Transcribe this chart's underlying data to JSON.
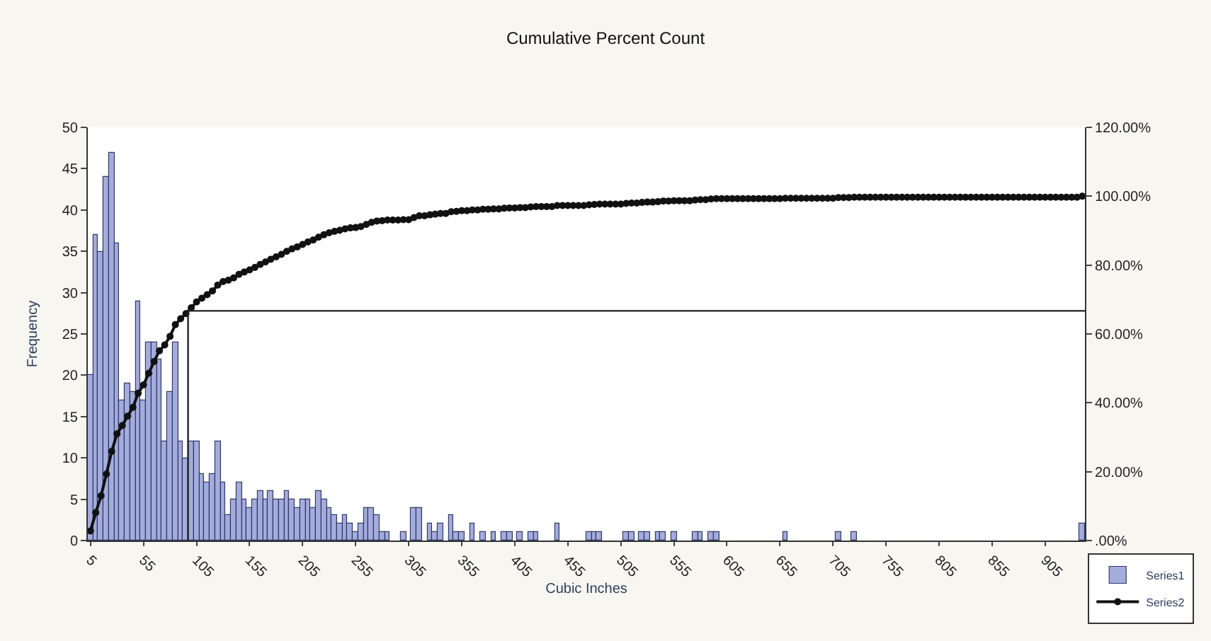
{
  "chart_data": {
    "type": "bar",
    "title": "Cumulative Percent Count",
    "xlabel": "Cubic Inches",
    "ylabel": "Frequency",
    "x": [
      5,
      10,
      15,
      20,
      25,
      30,
      35,
      40,
      45,
      50,
      55,
      60,
      65,
      70,
      75,
      80,
      85,
      90,
      95,
      100,
      105,
      110,
      115,
      120,
      125,
      130,
      135,
      140,
      145,
      150,
      155,
      160,
      165,
      170,
      175,
      180,
      185,
      190,
      195,
      200,
      205,
      210,
      215,
      220,
      225,
      230,
      235,
      240,
      245,
      250,
      255,
      260,
      265,
      270,
      275,
      280,
      285,
      290,
      295,
      300,
      305,
      310,
      315,
      320,
      325,
      330,
      335,
      340,
      345,
      350,
      355,
      360,
      365,
      370,
      375,
      380,
      385,
      390,
      395,
      400,
      405,
      410,
      415,
      420,
      425,
      430,
      435,
      440,
      445,
      450,
      455,
      460,
      465,
      470,
      475,
      480,
      485,
      490,
      495,
      500,
      505,
      510,
      515,
      520,
      525,
      530,
      535,
      540,
      545,
      550,
      555,
      560,
      565,
      570,
      575,
      580,
      585,
      590,
      595,
      600,
      605,
      610,
      615,
      620,
      625,
      630,
      635,
      640,
      645,
      650,
      655,
      660,
      665,
      670,
      675,
      680,
      685,
      690,
      695,
      700,
      705,
      710,
      715,
      720,
      725,
      730,
      735,
      740,
      745,
      750,
      755,
      760,
      765,
      770,
      775,
      780,
      785,
      790,
      795,
      800,
      805,
      810,
      815,
      820,
      825,
      830,
      835,
      840,
      845,
      850,
      855,
      860,
      865,
      870,
      875,
      880,
      885,
      890,
      895,
      900,
      905,
      910,
      915,
      920,
      925,
      930,
      935,
      940
    ],
    "series": [
      {
        "name": "Series1",
        "color": "#a3acdc",
        "values": [
          20,
          37,
          35,
          44,
          47,
          36,
          17,
          19,
          18,
          29,
          17,
          24,
          24,
          22,
          12,
          18,
          24,
          12,
          10,
          12,
          12,
          8,
          7,
          8,
          12,
          7,
          3,
          5,
          7,
          5,
          4,
          5,
          6,
          5,
          6,
          5,
          5,
          6,
          5,
          4,
          5,
          5,
          4,
          6,
          5,
          4,
          3,
          2,
          3,
          2,
          1,
          2,
          4,
          4,
          3,
          1,
          1,
          0,
          0,
          1,
          0,
          4,
          4,
          0,
          2,
          1,
          2,
          0,
          3,
          1,
          1,
          0,
          2,
          0,
          1,
          0,
          1,
          0,
          1,
          1,
          0,
          1,
          0,
          1,
          1,
          0,
          0,
          0,
          2,
          0,
          0,
          0,
          0,
          0,
          1,
          1,
          1,
          0,
          0,
          0,
          0,
          1,
          1,
          0,
          1,
          1,
          0,
          1,
          1,
          0,
          1,
          0,
          0,
          0,
          1,
          1,
          0,
          1,
          1,
          0,
          0,
          0,
          0,
          0,
          0,
          0,
          0,
          0,
          0,
          0,
          0,
          1,
          0,
          0,
          0,
          0,
          0,
          0,
          0,
          0,
          0,
          1,
          0,
          0,
          1,
          0,
          0,
          0,
          0,
          0,
          0,
          0,
          0,
          0,
          0,
          0,
          0,
          0,
          0,
          0,
          0,
          0,
          0,
          0,
          0,
          0,
          0,
          0,
          0,
          0,
          0,
          0,
          0,
          0,
          0,
          0,
          0,
          0,
          0,
          0,
          0,
          0,
          0,
          0,
          0,
          0,
          0,
          2
        ]
      },
      {
        "name": "Series2",
        "type": "line",
        "axis": "y2",
        "color": "#111111",
        "values": [
          2.8,
          8.1,
          13.0,
          19.3,
          25.9,
          31.0,
          33.4,
          36.1,
          38.7,
          42.8,
          45.2,
          48.6,
          52.0,
          55.1,
          56.8,
          59.3,
          62.7,
          64.4,
          65.9,
          67.6,
          69.3,
          70.4,
          71.4,
          72.5,
          74.2,
          75.2,
          75.6,
          76.3,
          77.3,
          78.0,
          78.6,
          79.3,
          80.2,
          80.9,
          81.7,
          82.4,
          83.1,
          84.0,
          84.7,
          85.3,
          86.0,
          86.7,
          87.3,
          88.1,
          88.8,
          89.4,
          89.8,
          90.1,
          90.5,
          90.8,
          90.9,
          91.2,
          91.8,
          92.4,
          92.8,
          92.9,
          93.1,
          93.1,
          93.1,
          93.2,
          93.2,
          93.8,
          94.3,
          94.3,
          94.6,
          94.8,
          95.0,
          95.0,
          95.5,
          95.6,
          95.8,
          95.8,
          96.0,
          96.0,
          96.2,
          96.2,
          96.3,
          96.3,
          96.5,
          96.6,
          96.6,
          96.7,
          96.7,
          96.9,
          97.0,
          97.0,
          97.0,
          97.0,
          97.3,
          97.3,
          97.3,
          97.3,
          97.3,
          97.3,
          97.5,
          97.6,
          97.7,
          97.7,
          97.7,
          97.7,
          97.7,
          97.9,
          98.0,
          98.0,
          98.2,
          98.3,
          98.3,
          98.4,
          98.6,
          98.6,
          98.7,
          98.7,
          98.7,
          98.7,
          98.9,
          99.0,
          99.0,
          99.2,
          99.3,
          99.3,
          99.3,
          99.3,
          99.3,
          99.3,
          99.3,
          99.3,
          99.3,
          99.3,
          99.3,
          99.3,
          99.3,
          99.4,
          99.4,
          99.4,
          99.4,
          99.4,
          99.4,
          99.4,
          99.4,
          99.4,
          99.4,
          99.6,
          99.6,
          99.6,
          99.7,
          99.7,
          99.7,
          99.7,
          99.7,
          99.7,
          99.7,
          99.7,
          99.7,
          99.7,
          99.7,
          99.7,
          99.7,
          99.7,
          99.7,
          99.7,
          99.7,
          99.7,
          99.7,
          99.7,
          99.7,
          99.7,
          99.7,
          99.7,
          99.7,
          99.7,
          99.7,
          99.7,
          99.7,
          99.7,
          99.7,
          99.7,
          99.7,
          99.7,
          99.7,
          99.7,
          99.7,
          99.7,
          99.7,
          99.7,
          99.7,
          99.7,
          99.7,
          100.0
        ]
      }
    ],
    "xlim": [
      2.5,
      942.5
    ],
    "xticks": [
      5,
      55,
      105,
      155,
      205,
      255,
      305,
      355,
      405,
      455,
      505,
      555,
      605,
      655,
      705,
      755,
      805,
      855,
      905
    ],
    "ylim": [
      0,
      50
    ],
    "yticks": [
      0,
      5,
      10,
      15,
      20,
      25,
      30,
      35,
      40,
      45,
      50
    ],
    "y2lim": [
      0,
      120
    ],
    "y2ticks": [
      {
        "value": 0,
        "label": ".00%"
      },
      {
        "value": 20,
        "label": "20.00%"
      },
      {
        "value": 40,
        "label": "40.00%"
      },
      {
        "value": 60,
        "label": "60.00%"
      },
      {
        "value": 80,
        "label": "80.00%"
      },
      {
        "value": 100,
        "label": "100.00%"
      },
      {
        "value": 120,
        "label": "120.00%"
      }
    ],
    "ref_lines": [
      {
        "axis": "y2",
        "value": 66.7,
        "color": "#222222"
      },
      {
        "axis": "x",
        "value": 97,
        "color": "#222222"
      }
    ],
    "marker": "circle",
    "legend": "bottom right"
  }
}
